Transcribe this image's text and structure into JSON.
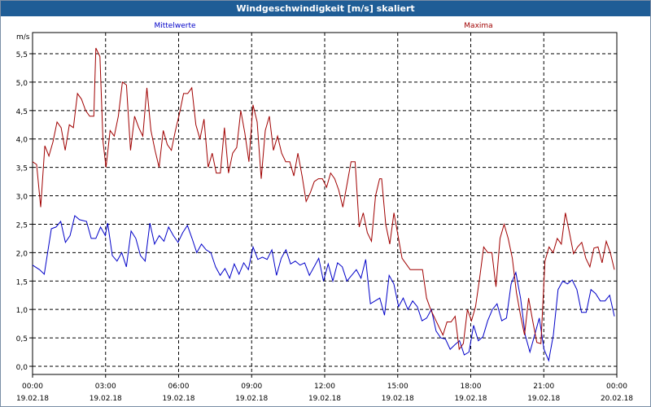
{
  "window": {
    "title": "Windgeschwindigkeit [m/s] skaliert"
  },
  "colors": {
    "mean": "#0000c8",
    "max": "#a00000",
    "grid": "#000000",
    "titlebar": "#1f5d96"
  },
  "chart_data": {
    "type": "line",
    "title": "Windgeschwindigkeit [m/s] skaliert",
    "ylabel": "m/s",
    "ylim": [
      0,
      5.8
    ],
    "yticks": [
      "0,0",
      "0,5",
      "1,0",
      "1,5",
      "2,0",
      "2,5",
      "3,0",
      "3,5",
      "4,0",
      "4,5",
      "5,0",
      "5,5"
    ],
    "x_ticks": [
      {
        "time": "00:00",
        "date": "19.02.18"
      },
      {
        "time": "03:00",
        "date": "19.02.18"
      },
      {
        "time": "06:00",
        "date": "19.02.18"
      },
      {
        "time": "09:00",
        "date": "19.02.18"
      },
      {
        "time": "12:00",
        "date": "19.02.18"
      },
      {
        "time": "15:00",
        "date": "19.02.18"
      },
      {
        "time": "18:00",
        "date": "19.02.18"
      },
      {
        "time": "21:00",
        "date": "19.02.18"
      },
      {
        "time": "00:00",
        "date": "20.02.18"
      }
    ],
    "x_hours_range": [
      0,
      24
    ],
    "grid": true,
    "series": [
      {
        "name": "Mittelwerte",
        "color": "#0000c8",
        "points": [
          [
            0.0,
            1.78
          ],
          [
            0.3,
            1.7
          ],
          [
            0.5,
            1.62
          ],
          [
            0.8,
            2.42
          ],
          [
            1.0,
            2.45
          ],
          [
            1.2,
            2.55
          ],
          [
            1.4,
            2.18
          ],
          [
            1.6,
            2.3
          ],
          [
            1.8,
            2.65
          ],
          [
            2.0,
            2.58
          ],
          [
            2.3,
            2.55
          ],
          [
            2.5,
            2.25
          ],
          [
            2.7,
            2.25
          ],
          [
            2.9,
            2.45
          ],
          [
            3.1,
            2.3
          ],
          [
            3.2,
            2.52
          ],
          [
            3.4,
            1.95
          ],
          [
            3.6,
            1.85
          ],
          [
            3.8,
            2.0
          ],
          [
            4.0,
            1.75
          ],
          [
            4.2,
            2.38
          ],
          [
            4.4,
            2.25
          ],
          [
            4.6,
            1.95
          ],
          [
            4.8,
            1.85
          ],
          [
            5.0,
            2.52
          ],
          [
            5.2,
            2.15
          ],
          [
            5.4,
            2.3
          ],
          [
            5.6,
            2.2
          ],
          [
            5.8,
            2.45
          ],
          [
            6.0,
            2.3
          ],
          [
            6.2,
            2.18
          ],
          [
            6.4,
            2.35
          ],
          [
            6.6,
            2.48
          ],
          [
            6.8,
            2.25
          ],
          [
            7.0,
            2.0
          ],
          [
            7.2,
            2.15
          ],
          [
            7.4,
            2.05
          ],
          [
            7.6,
            2.0
          ],
          [
            7.8,
            1.75
          ],
          [
            8.0,
            1.6
          ],
          [
            8.2,
            1.72
          ],
          [
            8.4,
            1.55
          ],
          [
            8.6,
            1.8
          ],
          [
            8.8,
            1.62
          ],
          [
            9.0,
            1.82
          ],
          [
            9.2,
            1.7
          ],
          [
            9.4,
            2.1
          ],
          [
            9.6,
            1.88
          ],
          [
            9.8,
            1.92
          ],
          [
            10.0,
            1.88
          ],
          [
            10.2,
            2.05
          ],
          [
            10.4,
            1.6
          ],
          [
            10.6,
            1.9
          ],
          [
            10.8,
            2.05
          ],
          [
            11.0,
            1.8
          ],
          [
            11.2,
            1.85
          ],
          [
            11.4,
            1.78
          ],
          [
            11.6,
            1.82
          ],
          [
            11.8,
            1.6
          ],
          [
            12.0,
            1.75
          ],
          [
            12.2,
            1.9
          ],
          [
            12.4,
            1.5
          ],
          [
            12.6,
            1.8
          ],
          [
            12.8,
            1.5
          ],
          [
            13.0,
            1.82
          ],
          [
            13.2,
            1.75
          ],
          [
            13.4,
            1.5
          ],
          [
            13.6,
            1.6
          ],
          [
            13.8,
            1.7
          ],
          [
            14.0,
            1.55
          ],
          [
            14.2,
            1.88
          ],
          [
            14.4,
            1.1
          ],
          [
            14.6,
            1.15
          ],
          [
            14.8,
            1.2
          ],
          [
            15.0,
            0.9
          ],
          [
            15.2,
            1.6
          ],
          [
            15.4,
            1.45
          ],
          [
            15.6,
            1.05
          ],
          [
            15.8,
            1.2
          ],
          [
            16.0,
            1.0
          ],
          [
            16.2,
            1.15
          ],
          [
            16.4,
            1.05
          ],
          [
            16.6,
            0.8
          ],
          [
            16.8,
            0.85
          ],
          [
            17.0,
            1.0
          ],
          [
            17.2,
            0.62
          ],
          [
            17.4,
            0.5
          ],
          [
            17.6,
            0.48
          ],
          [
            17.8,
            0.3
          ],
          [
            18.0,
            0.38
          ],
          [
            18.2,
            0.45
          ],
          [
            18.4,
            0.2
          ],
          [
            18.6,
            0.25
          ],
          [
            18.8,
            0.72
          ],
          [
            19.0,
            0.45
          ],
          [
            19.2,
            0.52
          ],
          [
            19.4,
            0.8
          ],
          [
            19.6,
            1.0
          ],
          [
            19.8,
            1.1
          ],
          [
            20.0,
            0.8
          ],
          [
            20.2,
            0.85
          ],
          [
            20.4,
            1.45
          ],
          [
            20.6,
            1.65
          ],
          [
            20.8,
            1.2
          ],
          [
            21.0,
            0.55
          ],
          [
            21.2,
            0.25
          ],
          [
            21.4,
            0.55
          ],
          [
            21.6,
            0.85
          ],
          [
            21.8,
            0.3
          ],
          [
            22.0,
            0.1
          ],
          [
            22.2,
            0.55
          ],
          [
            22.4,
            1.35
          ],
          [
            22.6,
            1.5
          ],
          [
            22.8,
            1.45
          ],
          [
            23.0,
            1.52
          ],
          [
            23.2,
            1.35
          ],
          [
            23.4,
            0.95
          ],
          [
            23.6,
            0.95
          ],
          [
            23.8,
            1.35
          ],
          [
            24.0,
            1.28
          ],
          [
            24.2,
            1.15
          ],
          [
            24.4,
            1.15
          ],
          [
            24.6,
            1.25
          ],
          [
            24.8,
            0.88
          ]
        ]
      },
      {
        "name": "Maxima",
        "color": "#a00000",
        "points": [
          [
            0.0,
            3.6
          ],
          [
            0.2,
            3.55
          ],
          [
            0.4,
            2.8
          ],
          [
            0.6,
            3.88
          ],
          [
            0.8,
            3.7
          ],
          [
            1.0,
            3.95
          ],
          [
            1.2,
            4.3
          ],
          [
            1.4,
            4.2
          ],
          [
            1.6,
            3.8
          ],
          [
            1.8,
            4.25
          ],
          [
            2.0,
            4.2
          ],
          [
            2.2,
            4.8
          ],
          [
            2.4,
            4.7
          ],
          [
            2.6,
            4.5
          ],
          [
            2.8,
            4.4
          ],
          [
            3.0,
            4.4
          ],
          [
            3.1,
            5.6
          ],
          [
            3.3,
            5.45
          ],
          [
            3.45,
            3.95
          ],
          [
            3.6,
            3.5
          ],
          [
            3.8,
            4.15
          ],
          [
            4.0,
            4.05
          ],
          [
            4.2,
            4.4
          ],
          [
            4.4,
            5.0
          ],
          [
            4.6,
            4.95
          ],
          [
            4.8,
            3.8
          ],
          [
            5.0,
            4.4
          ],
          [
            5.2,
            4.2
          ],
          [
            5.4,
            4.05
          ],
          [
            5.6,
            4.9
          ],
          [
            5.8,
            4.15
          ],
          [
            6.0,
            3.8
          ],
          [
            6.2,
            3.5
          ],
          [
            6.4,
            4.15
          ],
          [
            6.6,
            3.9
          ],
          [
            6.8,
            3.8
          ],
          [
            7.0,
            4.15
          ],
          [
            7.2,
            4.45
          ],
          [
            7.4,
            4.8
          ],
          [
            7.6,
            4.8
          ],
          [
            7.8,
            4.9
          ],
          [
            8.0,
            4.25
          ],
          [
            8.2,
            4.0
          ],
          [
            8.4,
            4.35
          ],
          [
            8.6,
            3.5
          ],
          [
            8.8,
            3.75
          ],
          [
            9.0,
            3.4
          ],
          [
            9.2,
            3.4
          ],
          [
            9.4,
            4.2
          ],
          [
            9.6,
            3.4
          ],
          [
            9.8,
            3.75
          ],
          [
            10.0,
            3.85
          ],
          [
            10.2,
            4.5
          ],
          [
            10.4,
            4.1
          ],
          [
            10.6,
            3.6
          ],
          [
            10.8,
            4.6
          ],
          [
            11.0,
            4.3
          ],
          [
            11.2,
            3.3
          ],
          [
            11.4,
            4.15
          ],
          [
            11.6,
            4.4
          ],
          [
            11.8,
            3.8
          ],
          [
            12.0,
            4.05
          ],
          [
            12.2,
            3.75
          ],
          [
            12.4,
            3.6
          ],
          [
            12.6,
            3.6
          ],
          [
            12.8,
            3.35
          ],
          [
            13.0,
            3.75
          ],
          [
            13.2,
            3.35
          ],
          [
            13.4,
            2.9
          ],
          [
            13.6,
            3.05
          ],
          [
            13.8,
            3.25
          ],
          [
            14.0,
            3.3
          ],
          [
            14.2,
            3.3
          ],
          [
            14.4,
            3.15
          ],
          [
            14.6,
            3.4
          ],
          [
            14.8,
            3.3
          ],
          [
            15.0,
            3.1
          ],
          [
            15.2,
            2.8
          ],
          [
            15.4,
            3.2
          ],
          [
            15.6,
            3.6
          ],
          [
            15.8,
            3.6
          ],
          [
            16.0,
            2.45
          ],
          [
            16.2,
            2.7
          ],
          [
            16.4,
            2.35
          ],
          [
            16.6,
            2.2
          ],
          [
            16.8,
            3.0
          ],
          [
            17.0,
            3.3
          ],
          [
            17.1,
            3.3
          ],
          [
            17.3,
            2.5
          ],
          [
            17.5,
            2.15
          ],
          [
            17.7,
            2.7
          ],
          [
            17.9,
            2.3
          ],
          [
            18.1,
            1.9
          ],
          [
            18.3,
            1.8
          ],
          [
            18.5,
            1.7
          ],
          [
            18.7,
            1.7
          ],
          [
            18.9,
            1.7
          ],
          [
            19.1,
            1.7
          ],
          [
            19.3,
            1.2
          ],
          [
            19.5,
            1.0
          ],
          [
            19.7,
            0.85
          ],
          [
            19.9,
            0.7
          ],
          [
            20.1,
            0.55
          ],
          [
            20.3,
            0.78
          ],
          [
            20.5,
            0.78
          ],
          [
            20.7,
            0.88
          ],
          [
            20.9,
            0.3
          ],
          [
            21.1,
            0.4
          ],
          [
            21.3,
            1.0
          ],
          [
            21.5,
            0.8
          ],
          [
            21.7,
            1.05
          ],
          [
            21.9,
            1.55
          ],
          [
            22.1,
            2.1
          ],
          [
            22.3,
            2.0
          ],
          [
            22.5,
            2.0
          ],
          [
            22.7,
            1.4
          ],
          [
            22.9,
            2.25
          ],
          [
            23.1,
            2.5
          ],
          [
            23.3,
            2.25
          ],
          [
            23.5,
            1.9
          ],
          [
            23.7,
            1.3
          ],
          [
            23.9,
            0.9
          ],
          [
            24.1,
            0.55
          ],
          [
            24.3,
            1.2
          ],
          [
            24.5,
            0.8
          ],
          [
            24.7,
            0.42
          ],
          [
            24.9,
            0.4
          ],
          [
            25.1,
            1.85
          ],
          [
            25.3,
            2.1
          ],
          [
            25.5,
            2.0
          ],
          [
            25.7,
            2.25
          ],
          [
            25.9,
            2.15
          ],
          [
            26.1,
            2.7
          ],
          [
            26.3,
            2.35
          ],
          [
            26.5,
            1.98
          ],
          [
            26.7,
            2.1
          ],
          [
            26.9,
            2.18
          ],
          [
            27.1,
            1.9
          ],
          [
            27.3,
            1.75
          ],
          [
            27.5,
            2.08
          ],
          [
            27.7,
            2.1
          ],
          [
            27.9,
            1.82
          ],
          [
            28.1,
            2.2
          ],
          [
            28.3,
            2.0
          ],
          [
            28.5,
            1.7
          ]
        ]
      }
    ]
  }
}
